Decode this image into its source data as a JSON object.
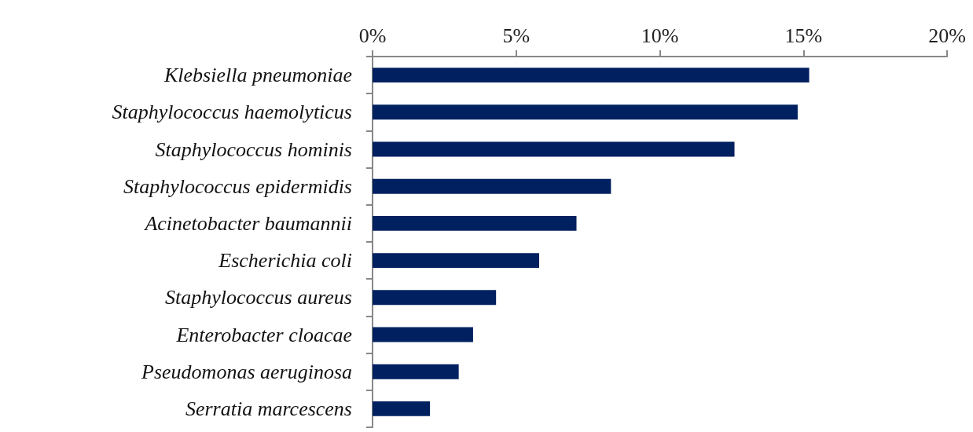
{
  "chart_data": {
    "type": "bar",
    "orientation": "horizontal",
    "categories": [
      "Klebsiella pneumoniae",
      "Staphylococcus haemolyticus",
      "Staphylococcus hominis",
      "Staphylococcus epidermidis",
      "Acinetobacter baumannii",
      "Escherichia coli",
      "Staphylococcus aureus",
      "Enterobacter cloacae",
      "Pseudomonas aeruginosa",
      "Serratia marcescens"
    ],
    "values": [
      15.2,
      14.8,
      12.6,
      8.3,
      7.1,
      5.8,
      4.3,
      3.5,
      3.0,
      2.0
    ],
    "color": "#002060",
    "xlim": [
      0,
      20
    ],
    "xticks": [
      {
        "value": 0,
        "label": "0%"
      },
      {
        "value": 5,
        "label": "5%"
      },
      {
        "value": 10,
        "label": "10%"
      },
      {
        "value": 15,
        "label": "15%"
      },
      {
        "value": 20,
        "label": "20%"
      }
    ]
  }
}
